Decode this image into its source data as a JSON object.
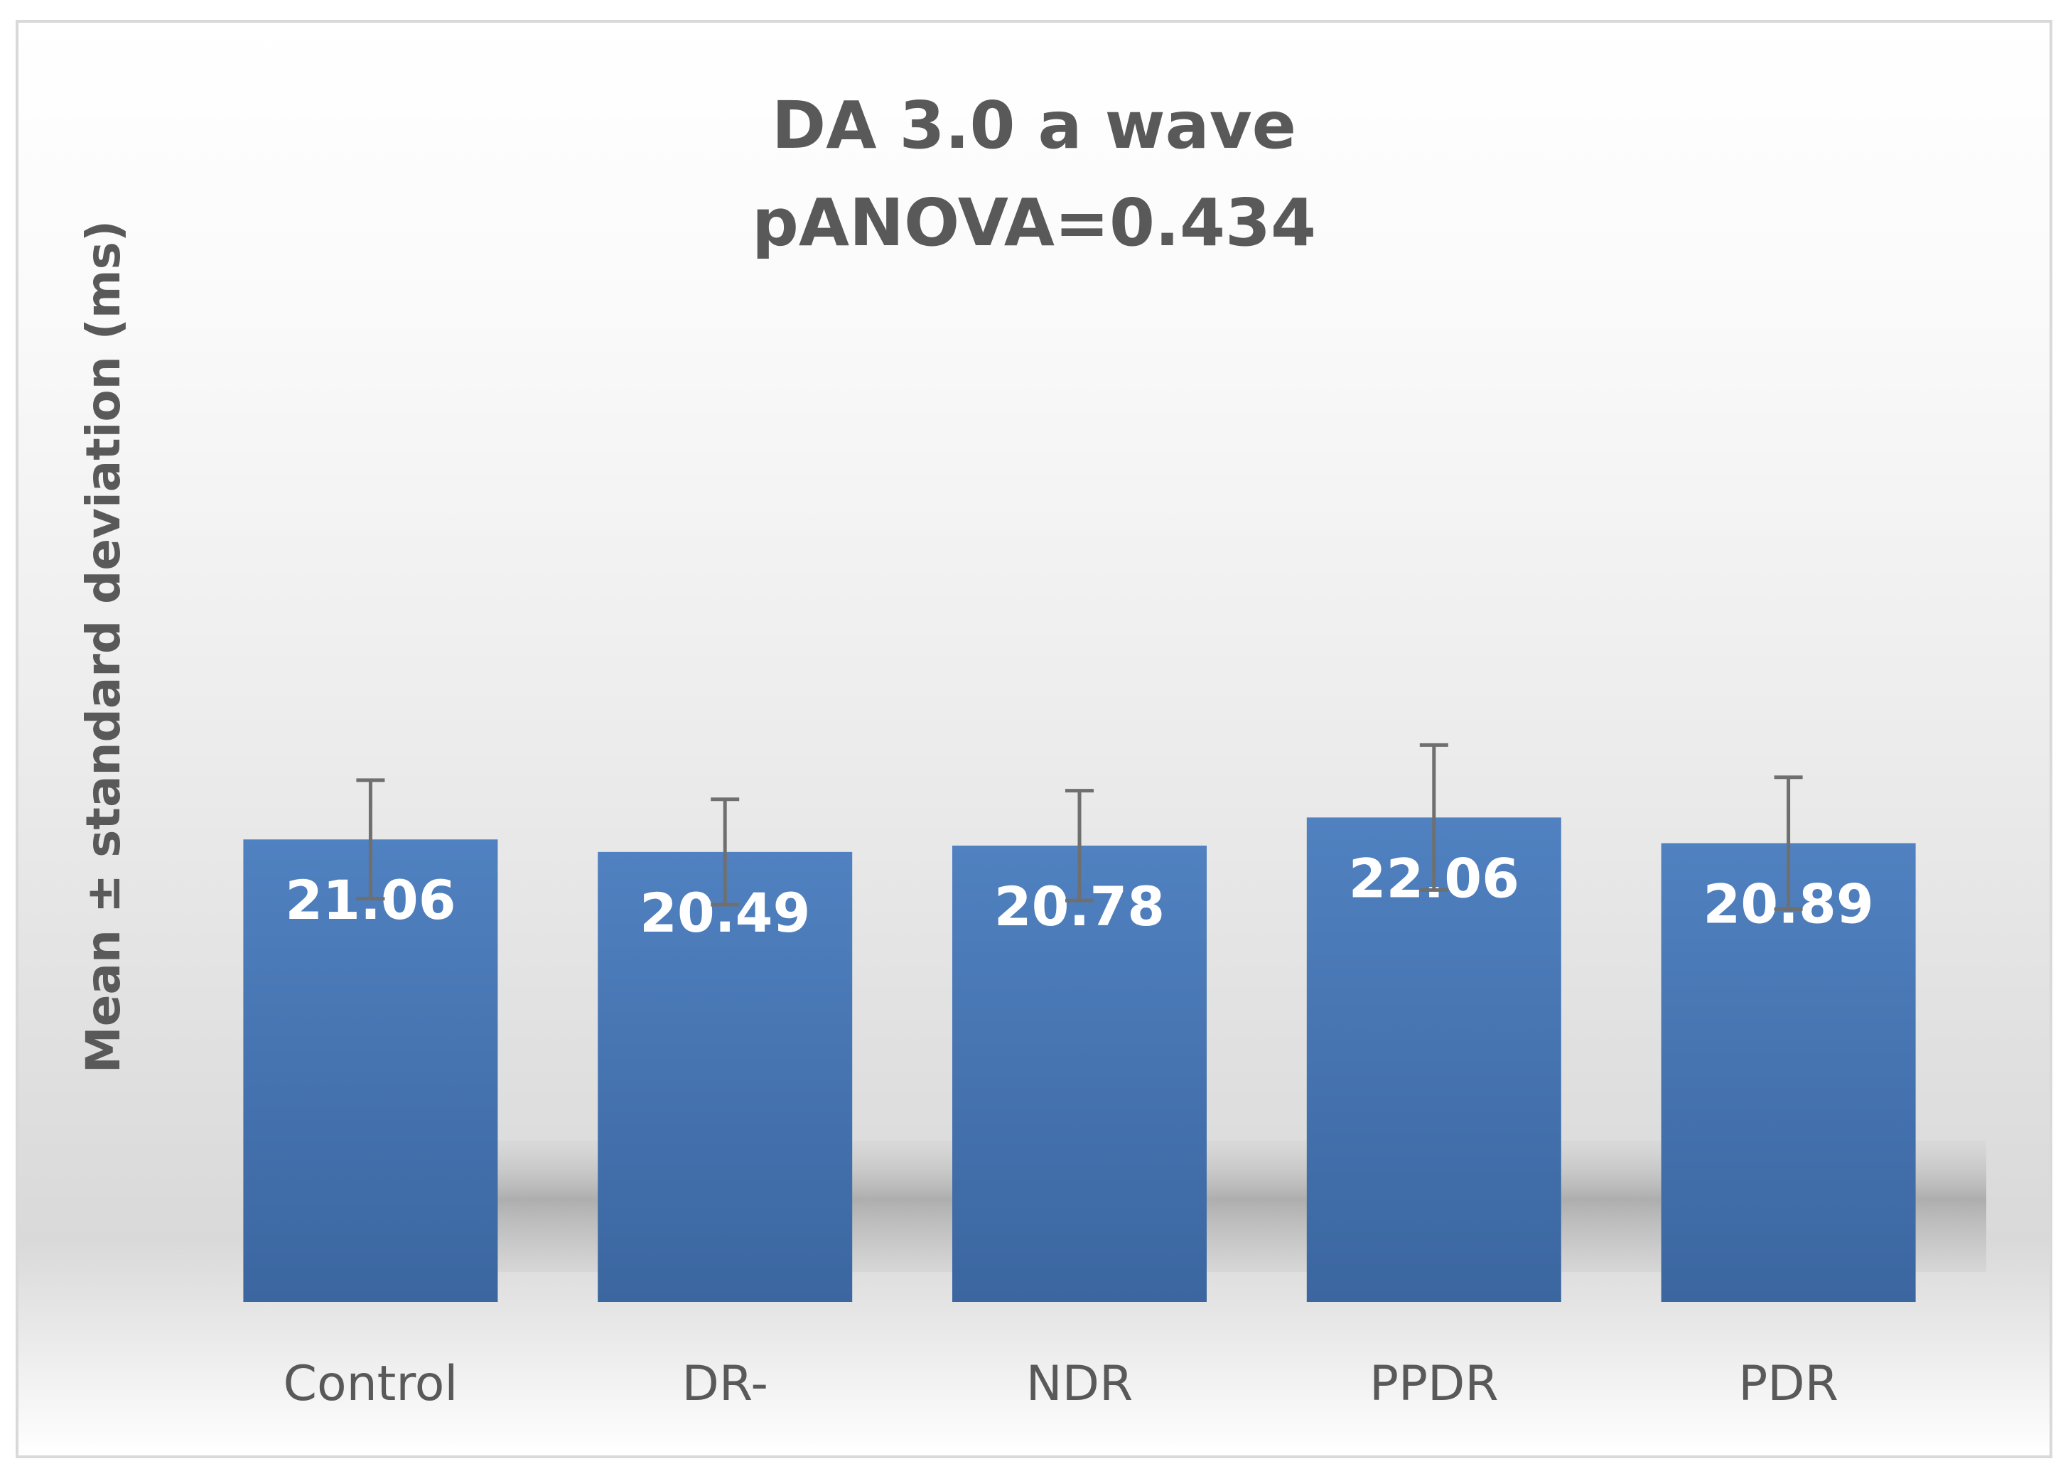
{
  "chart_data": {
    "type": "bar",
    "title": "DA 3.0 a wave",
    "subtitle": "pANOVA=0.434",
    "xlabel": "",
    "ylabel": "Mean ± standard deviation (ms)",
    "categories": [
      "Control",
      "DR-",
      "NDR",
      "PPDR",
      "PDR"
    ],
    "series": [
      {
        "values": [
          21.06,
          20.49,
          20.78,
          22.06,
          20.89
        ],
        "error": [
          2.7,
          2.4,
          2.5,
          3.3,
          3.0
        ],
        "color": "#4a76b0"
      }
    ],
    "data_labels": [
      "21.06",
      "20.49",
      "20.78",
      "22.06",
      "20.89"
    ],
    "error_bar_color": "#6f6f6f",
    "ylim": [
      0,
      30
    ],
    "grid": false,
    "legend": "none"
  }
}
